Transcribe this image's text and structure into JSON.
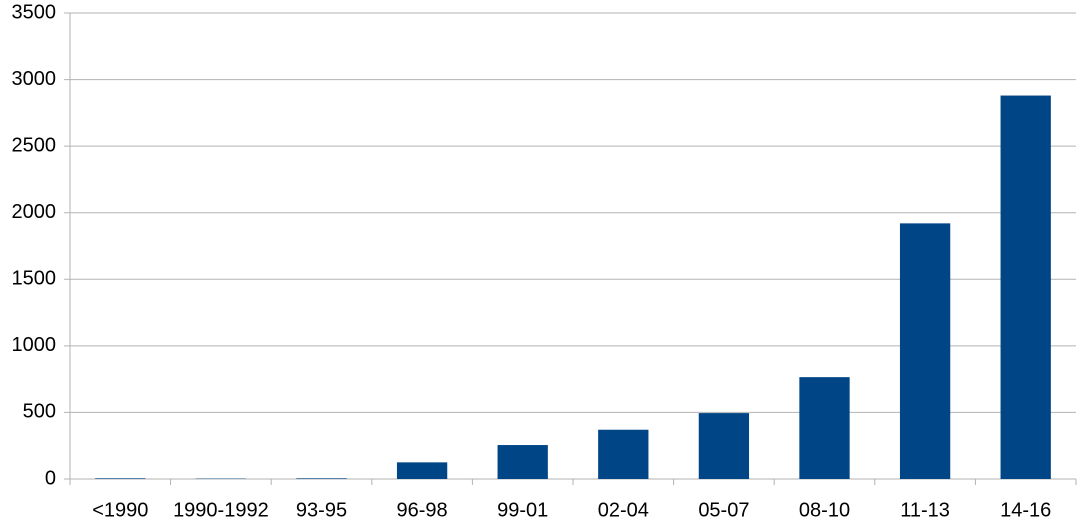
{
  "chart_data": {
    "type": "bar",
    "categories": [
      "<1990",
      "1990-1992",
      "93-95",
      "96-98",
      "99-01",
      "02-04",
      "05-07",
      "08-10",
      "11-13",
      "14-16"
    ],
    "values": [
      5,
      3,
      5,
      125,
      255,
      370,
      495,
      765,
      1920,
      2880
    ],
    "color": "#004586",
    "ylim": [
      0,
      3500
    ],
    "yticks": [
      0,
      500,
      1000,
      1500,
      2000,
      2500,
      3000,
      3500
    ],
    "grid": true
  }
}
